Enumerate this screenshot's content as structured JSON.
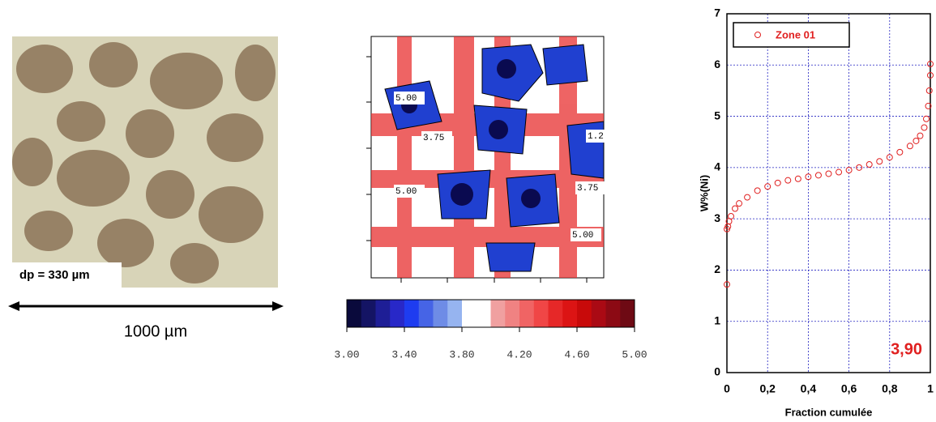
{
  "micrograph": {
    "scale_label": "dp = 330 µm",
    "bar_label": "1000 µm"
  },
  "contour_map": {
    "labels": [
      "5.00",
      "3.75",
      "1.2",
      "5.00",
      "3.75",
      "5.00"
    ],
    "colorbar": {
      "colors": [
        "#0a0a3c",
        "#141464",
        "#1e1e96",
        "#2828c8",
        "#1e3cf0",
        "#4664e6",
        "#6e8ce6",
        "#96b4f0",
        "#ffffff",
        "#ffffff",
        "#f0a0a0",
        "#f08282",
        "#f06464",
        "#f04646",
        "#e62828",
        "#dc1414",
        "#c80a0a",
        "#aa0a14",
        "#8c0a14",
        "#6e0a14"
      ],
      "ticks": [
        {
          "value": 3.0,
          "label": "3.00"
        },
        {
          "value": 3.4,
          "label": "3.40"
        },
        {
          "value": 3.8,
          "label": "3.80"
        },
        {
          "value": 4.2,
          "label": "4.20"
        },
        {
          "value": 4.6,
          "label": "4.60"
        },
        {
          "value": 5.0,
          "label": "5.00"
        }
      ],
      "lim": [
        3.0,
        5.0
      ]
    }
  },
  "chart_data": {
    "type": "scatter",
    "xlabel": "Fraction cumulée",
    "ylabel": "W%(Ni)",
    "annotation": "3,90",
    "annotation_color": "#e02020",
    "x": [
      0,
      0,
      0.005,
      0.01,
      0.02,
      0.04,
      0.06,
      0.1,
      0.15,
      0.2,
      0.25,
      0.3,
      0.35,
      0.4,
      0.45,
      0.5,
      0.55,
      0.6,
      0.65,
      0.7,
      0.75,
      0.8,
      0.85,
      0.9,
      0.93,
      0.95,
      0.97,
      0.98,
      0.99,
      0.995,
      1.0,
      1.0
    ],
    "series": [
      {
        "name": "Zone 01",
        "color": "#e02020",
        "values": [
          1.72,
          2.8,
          2.85,
          2.95,
          3.05,
          3.2,
          3.3,
          3.42,
          3.55,
          3.63,
          3.7,
          3.75,
          3.78,
          3.82,
          3.85,
          3.88,
          3.91,
          3.95,
          4.0,
          4.06,
          4.12,
          4.2,
          4.3,
          4.42,
          4.52,
          4.62,
          4.78,
          4.95,
          5.2,
          5.5,
          5.8,
          6.02
        ]
      }
    ],
    "xlim": [
      0,
      1
    ],
    "ylim": [
      0,
      7
    ],
    "xticks": [
      0,
      {
        "value": 0.2,
        "label": "0,2"
      },
      {
        "value": 0.4,
        "label": "0,4"
      },
      {
        "value": 0.6,
        "label": "0,6"
      },
      {
        "value": 0.8,
        "label": "0,8"
      },
      1
    ],
    "yticks": [
      0,
      1,
      2,
      3,
      4,
      5,
      6,
      7
    ],
    "grid": true,
    "grid_color": "#2020c0",
    "legend": "upper left"
  }
}
